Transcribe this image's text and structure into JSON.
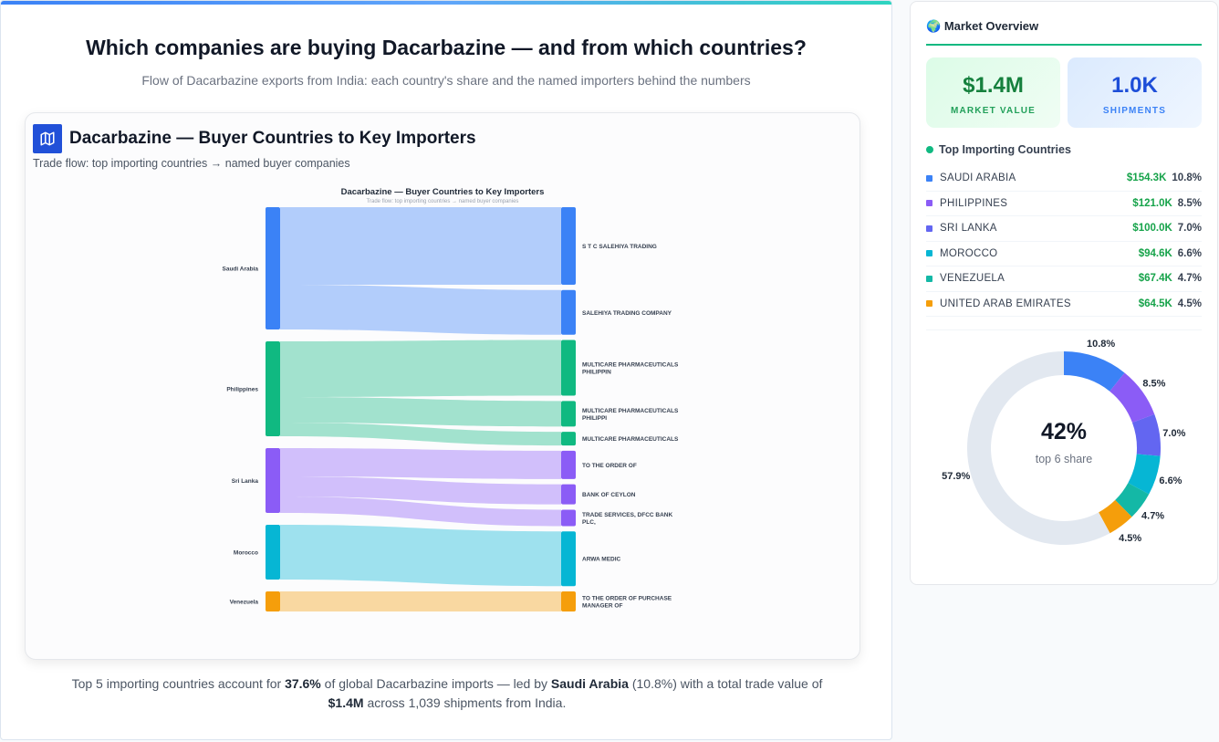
{
  "header": {
    "title": "Which companies are buying Dacarbazine — and from which countries?",
    "subtitle": "Flow of Dacarbazine exports from India: each country's share and the named importers behind the numbers"
  },
  "card": {
    "icon": "map-icon",
    "title": "Dacarbazine — Buyer Countries to Key Importers",
    "subtitle": "Trade flow: top importing countries → named buyer companies"
  },
  "chart_data": [
    {
      "type": "sankey",
      "title": "Dacarbazine — Buyer Countries to Key Importers",
      "subtitle": "Trade flow: top importing countries → named buyer companies",
      "sources": [
        {
          "name": "Saudi Arabia",
          "color": "#3b82f6"
        },
        {
          "name": "Philippines",
          "color": "#10b981"
        },
        {
          "name": "Sri Lanka",
          "color": "#8b5cf6"
        },
        {
          "name": "Morocco",
          "color": "#06b6d4"
        },
        {
          "name": "Venezuela",
          "color": "#f59e0b"
        }
      ],
      "links": [
        {
          "source": "Saudi Arabia",
          "target": [
            "S T C SALEHIYA TRADING"
          ],
          "value": 85
        },
        {
          "source": "Saudi Arabia",
          "target": [
            "SALEHIYA TRADING COMPANY"
          ],
          "value": 49
        },
        {
          "source": "Philippines",
          "target": [
            "MULTICARE PHARMACEUTICALS",
            "PHILIPPIN"
          ],
          "value": 61
        },
        {
          "source": "Philippines",
          "target": [
            "MULTICARE PHARMACEUTICALS",
            "PHILIPPI"
          ],
          "value": 28
        },
        {
          "source": "Philippines",
          "target": [
            "MULTICARE PHARMACEUTICALS"
          ],
          "value": 15
        },
        {
          "source": "Sri Lanka",
          "target": [
            "TO THE ORDER OF"
          ],
          "value": 31
        },
        {
          "source": "Sri Lanka",
          "target": [
            "BANK OF CEYLON"
          ],
          "value": 22
        },
        {
          "source": "Sri Lanka",
          "target": [
            "TRADE SERVICES, DFCC BANK",
            "PLC,"
          ],
          "value": 18
        },
        {
          "source": "Morocco",
          "target": [
            "ARWA MEDIC"
          ],
          "value": 60
        },
        {
          "source": "Venezuela",
          "target": [
            "TO THE ORDER OF PURCHASE",
            "MANAGER OF"
          ],
          "value": 22
        }
      ]
    },
    {
      "type": "pie",
      "donut": true,
      "center_value": "42%",
      "center_label": "top 6 share",
      "slices": [
        {
          "value": 10.8,
          "label": "10.8%",
          "color": "#3b82f6"
        },
        {
          "value": 8.5,
          "label": "8.5%",
          "color": "#8b5cf6"
        },
        {
          "value": 7.0,
          "label": "7.0%",
          "color": "#6366f1"
        },
        {
          "value": 6.6,
          "label": "6.6%",
          "color": "#06b6d4"
        },
        {
          "value": 4.7,
          "label": "4.7%",
          "color": "#14b8a6"
        },
        {
          "value": 4.5,
          "label": "4.5%",
          "color": "#f59e0b"
        },
        {
          "value": 57.9,
          "label": "57.9%",
          "color": "#e2e8f0"
        }
      ]
    }
  ],
  "footer": {
    "t1": "Top 5 importing countries account for ",
    "b1": "37.6%",
    "t2": " of global Dacarbazine imports — led by ",
    "b2": "Saudi Arabia",
    "t3": " (10.8%) with a total trade value of ",
    "b3": "$1.4M",
    "t4": " across 1,039 shipments from India."
  },
  "side": {
    "icon": "globe-icon",
    "title": "Market Overview",
    "kpis": [
      {
        "value": "$1.4M",
        "label": "MARKET VALUE"
      },
      {
        "value": "1.0K",
        "label": "SHIPMENTS"
      }
    ],
    "countries_title": "Top Importing Countries",
    "countries": [
      {
        "name": "SAUDI ARABIA",
        "value": "$154.3K",
        "pct": "10.8%",
        "color": "#3b82f6"
      },
      {
        "name": "PHILIPPINES",
        "value": "$121.0K",
        "pct": "8.5%",
        "color": "#8b5cf6"
      },
      {
        "name": "SRI LANKA",
        "value": "$100.0K",
        "pct": "7.0%",
        "color": "#6366f1"
      },
      {
        "name": "MOROCCO",
        "value": "$94.6K",
        "pct": "6.6%",
        "color": "#06b6d4"
      },
      {
        "name": "VENEZUELA",
        "value": "$67.4K",
        "pct": "4.7%",
        "color": "#14b8a6"
      },
      {
        "name": "UNITED ARAB EMIRATES",
        "value": "$64.5K",
        "pct": "4.5%",
        "color": "#f59e0b"
      }
    ]
  }
}
